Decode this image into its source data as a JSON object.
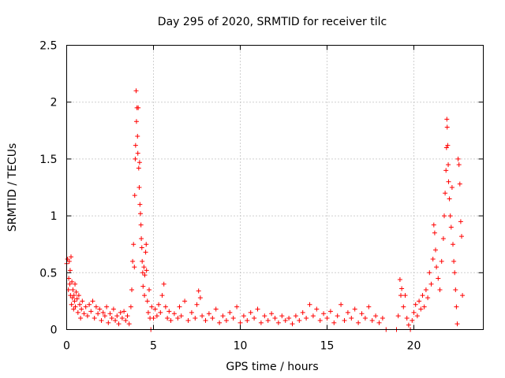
{
  "chart_data": {
    "type": "scatter",
    "title": "Day 295 of 2020, SRMTID for receiver tilc",
    "xlabel": "GPS time / hours",
    "ylabel": "SRMTID / TECUs",
    "xlim": [
      0,
      24
    ],
    "ylim": [
      0,
      2.5
    ],
    "xticks": [
      0,
      5,
      10,
      15,
      20
    ],
    "xtick_labels": [
      "0",
      "5",
      "10",
      "15",
      "20"
    ],
    "yticks": [
      0,
      0.5,
      1,
      1.5,
      2,
      2.5
    ],
    "ytick_labels": [
      "0",
      "0.5",
      "1",
      "1.5",
      "2",
      "2.5"
    ],
    "grid": true,
    "marker": "+",
    "color": "#ff0000",
    "series": [
      {
        "name": "SRMTID",
        "points": [
          [
            0.0,
            0.58
          ],
          [
            0.05,
            0.62
          ],
          [
            0.1,
            0.35
          ],
          [
            0.12,
            0.45
          ],
          [
            0.15,
            0.6
          ],
          [
            0.18,
            0.4
          ],
          [
            0.2,
            0.52
          ],
          [
            0.22,
            0.3
          ],
          [
            0.25,
            0.64
          ],
          [
            0.28,
            0.22
          ],
          [
            0.3,
            0.42
          ],
          [
            0.33,
            0.28
          ],
          [
            0.36,
            0.35
          ],
          [
            0.4,
            0.18
          ],
          [
            0.42,
            0.3
          ],
          [
            0.45,
            0.25
          ],
          [
            0.48,
            0.4
          ],
          [
            0.5,
            0.2
          ],
          [
            0.55,
            0.33
          ],
          [
            0.6,
            0.27
          ],
          [
            0.65,
            0.15
          ],
          [
            0.7,
            0.3
          ],
          [
            0.75,
            0.22
          ],
          [
            0.8,
            0.1
          ],
          [
            0.85,
            0.18
          ],
          [
            0.9,
            0.25
          ],
          [
            1.0,
            0.14
          ],
          [
            1.1,
            0.2
          ],
          [
            1.2,
            0.12
          ],
          [
            1.3,
            0.22
          ],
          [
            1.4,
            0.16
          ],
          [
            1.5,
            0.25
          ],
          [
            1.6,
            0.1
          ],
          [
            1.7,
            0.2
          ],
          [
            1.8,
            0.14
          ],
          [
            1.9,
            0.18
          ],
          [
            2.0,
            0.08
          ],
          [
            2.1,
            0.15
          ],
          [
            2.2,
            0.12
          ],
          [
            2.3,
            0.2
          ],
          [
            2.4,
            0.06
          ],
          [
            2.5,
            0.14
          ],
          [
            2.6,
            0.1
          ],
          [
            2.7,
            0.18
          ],
          [
            2.8,
            0.08
          ],
          [
            2.9,
            0.12
          ],
          [
            3.0,
            0.05
          ],
          [
            3.1,
            0.15
          ],
          [
            3.2,
            0.1
          ],
          [
            3.3,
            0.16
          ],
          [
            3.4,
            0.08
          ],
          [
            3.5,
            0.12
          ],
          [
            3.6,
            0.05
          ],
          [
            3.7,
            0.2
          ],
          [
            3.75,
            0.35
          ],
          [
            3.8,
            0.6
          ],
          [
            3.85,
            0.75
          ],
          [
            3.9,
            0.55
          ],
          [
            3.92,
            1.18
          ],
          [
            3.95,
            1.5
          ],
          [
            3.97,
            1.62
          ],
          [
            4.0,
            2.1
          ],
          [
            4.02,
            1.83
          ],
          [
            4.05,
            1.95
          ],
          [
            4.08,
            1.7
          ],
          [
            4.1,
            1.55
          ],
          [
            4.12,
            1.95
          ],
          [
            4.15,
            1.42
          ],
          [
            4.18,
            1.25
          ],
          [
            4.2,
            1.47
          ],
          [
            4.22,
            1.1
          ],
          [
            4.25,
            1.02
          ],
          [
            4.28,
            0.92
          ],
          [
            4.3,
            0.8
          ],
          [
            4.33,
            0.72
          ],
          [
            4.35,
            0.6
          ],
          [
            4.38,
            0.5
          ],
          [
            4.4,
            0.38
          ],
          [
            4.45,
            0.55
          ],
          [
            4.48,
            0.3
          ],
          [
            4.5,
            0.48
          ],
          [
            4.55,
            0.68
          ],
          [
            4.58,
            0.75
          ],
          [
            4.6,
            0.52
          ],
          [
            4.65,
            0.25
          ],
          [
            4.7,
            0.15
          ],
          [
            4.75,
            0.35
          ],
          [
            4.8,
            0.1
          ],
          [
            4.85,
            0.0
          ],
          [
            4.9,
            0.2
          ],
          [
            5.0,
            0.1
          ],
          [
            5.1,
            0.18
          ],
          [
            5.2,
            0.12
          ],
          [
            5.3,
            0.22
          ],
          [
            5.4,
            0.15
          ],
          [
            5.5,
            0.3
          ],
          [
            5.6,
            0.4
          ],
          [
            5.7,
            0.2
          ],
          [
            5.8,
            0.1
          ],
          [
            5.9,
            0.16
          ],
          [
            6.0,
            0.08
          ],
          [
            6.2,
            0.14
          ],
          [
            6.4,
            0.1
          ],
          [
            6.5,
            0.2
          ],
          [
            6.6,
            0.12
          ],
          [
            6.8,
            0.25
          ],
          [
            7.0,
            0.08
          ],
          [
            7.2,
            0.15
          ],
          [
            7.4,
            0.1
          ],
          [
            7.5,
            0.22
          ],
          [
            7.6,
            0.34
          ],
          [
            7.7,
            0.28
          ],
          [
            7.8,
            0.12
          ],
          [
            8.0,
            0.08
          ],
          [
            8.2,
            0.14
          ],
          [
            8.4,
            0.1
          ],
          [
            8.6,
            0.18
          ],
          [
            8.8,
            0.06
          ],
          [
            9.0,
            0.12
          ],
          [
            9.2,
            0.08
          ],
          [
            9.4,
            0.15
          ],
          [
            9.6,
            0.1
          ],
          [
            9.8,
            0.2
          ],
          [
            10.0,
            0.06
          ],
          [
            10.2,
            0.12
          ],
          [
            10.4,
            0.08
          ],
          [
            10.6,
            0.15
          ],
          [
            10.8,
            0.1
          ],
          [
            11.0,
            0.18
          ],
          [
            11.2,
            0.06
          ],
          [
            11.4,
            0.12
          ],
          [
            11.6,
            0.08
          ],
          [
            11.8,
            0.14
          ],
          [
            12.0,
            0.1
          ],
          [
            12.2,
            0.06
          ],
          [
            12.4,
            0.12
          ],
          [
            12.6,
            0.08
          ],
          [
            12.8,
            0.1
          ],
          [
            13.0,
            0.05
          ],
          [
            13.2,
            0.12
          ],
          [
            13.4,
            0.08
          ],
          [
            13.6,
            0.15
          ],
          [
            13.8,
            0.1
          ],
          [
            14.0,
            0.22
          ],
          [
            14.2,
            0.12
          ],
          [
            14.4,
            0.18
          ],
          [
            14.6,
            0.08
          ],
          [
            14.8,
            0.14
          ],
          [
            15.0,
            0.1
          ],
          [
            15.2,
            0.16
          ],
          [
            15.4,
            0.06
          ],
          [
            15.6,
            0.12
          ],
          [
            15.8,
            0.22
          ],
          [
            16.0,
            0.08
          ],
          [
            16.2,
            0.15
          ],
          [
            16.4,
            0.1
          ],
          [
            16.6,
            0.18
          ],
          [
            16.8,
            0.06
          ],
          [
            17.0,
            0.14
          ],
          [
            17.2,
            0.1
          ],
          [
            17.4,
            0.2
          ],
          [
            17.6,
            0.08
          ],
          [
            17.8,
            0.12
          ],
          [
            18.0,
            0.06
          ],
          [
            18.2,
            0.1
          ],
          [
            18.4,
            0.0
          ],
          [
            19.0,
            0.0
          ],
          [
            19.1,
            0.12
          ],
          [
            19.2,
            0.44
          ],
          [
            19.25,
            0.3
          ],
          [
            19.3,
            0.36
          ],
          [
            19.4,
            0.2
          ],
          [
            19.5,
            0.3
          ],
          [
            19.6,
            0.1
          ],
          [
            19.7,
            0.04
          ],
          [
            19.8,
            0.0
          ],
          [
            19.9,
            0.08
          ],
          [
            20.0,
            0.15
          ],
          [
            20.1,
            0.22
          ],
          [
            20.2,
            0.12
          ],
          [
            20.3,
            0.25
          ],
          [
            20.4,
            0.18
          ],
          [
            20.5,
            0.3
          ],
          [
            20.6,
            0.2
          ],
          [
            20.7,
            0.35
          ],
          [
            20.8,
            0.28
          ],
          [
            20.9,
            0.5
          ],
          [
            21.0,
            0.4
          ],
          [
            21.1,
            0.62
          ],
          [
            21.15,
            0.92
          ],
          [
            21.2,
            0.85
          ],
          [
            21.25,
            0.7
          ],
          [
            21.3,
            0.55
          ],
          [
            21.4,
            0.45
          ],
          [
            21.5,
            0.35
          ],
          [
            21.6,
            0.6
          ],
          [
            21.7,
            0.8
          ],
          [
            21.75,
            1.0
          ],
          [
            21.8,
            1.2
          ],
          [
            21.85,
            1.4
          ],
          [
            21.88,
            1.6
          ],
          [
            21.9,
            1.85
          ],
          [
            21.92,
            1.78
          ],
          [
            21.95,
            1.62
          ],
          [
            21.98,
            1.45
          ],
          [
            22.0,
            1.3
          ],
          [
            22.05,
            1.15
          ],
          [
            22.1,
            1.0
          ],
          [
            22.15,
            0.9
          ],
          [
            22.2,
            1.25
          ],
          [
            22.25,
            0.75
          ],
          [
            22.3,
            0.6
          ],
          [
            22.35,
            0.5
          ],
          [
            22.4,
            0.35
          ],
          [
            22.45,
            0.2
          ],
          [
            22.5,
            0.05
          ],
          [
            22.55,
            1.5
          ],
          [
            22.6,
            1.45
          ],
          [
            22.65,
            1.28
          ],
          [
            22.7,
            0.95
          ],
          [
            22.75,
            0.82
          ],
          [
            22.8,
            0.3
          ]
        ]
      }
    ]
  }
}
